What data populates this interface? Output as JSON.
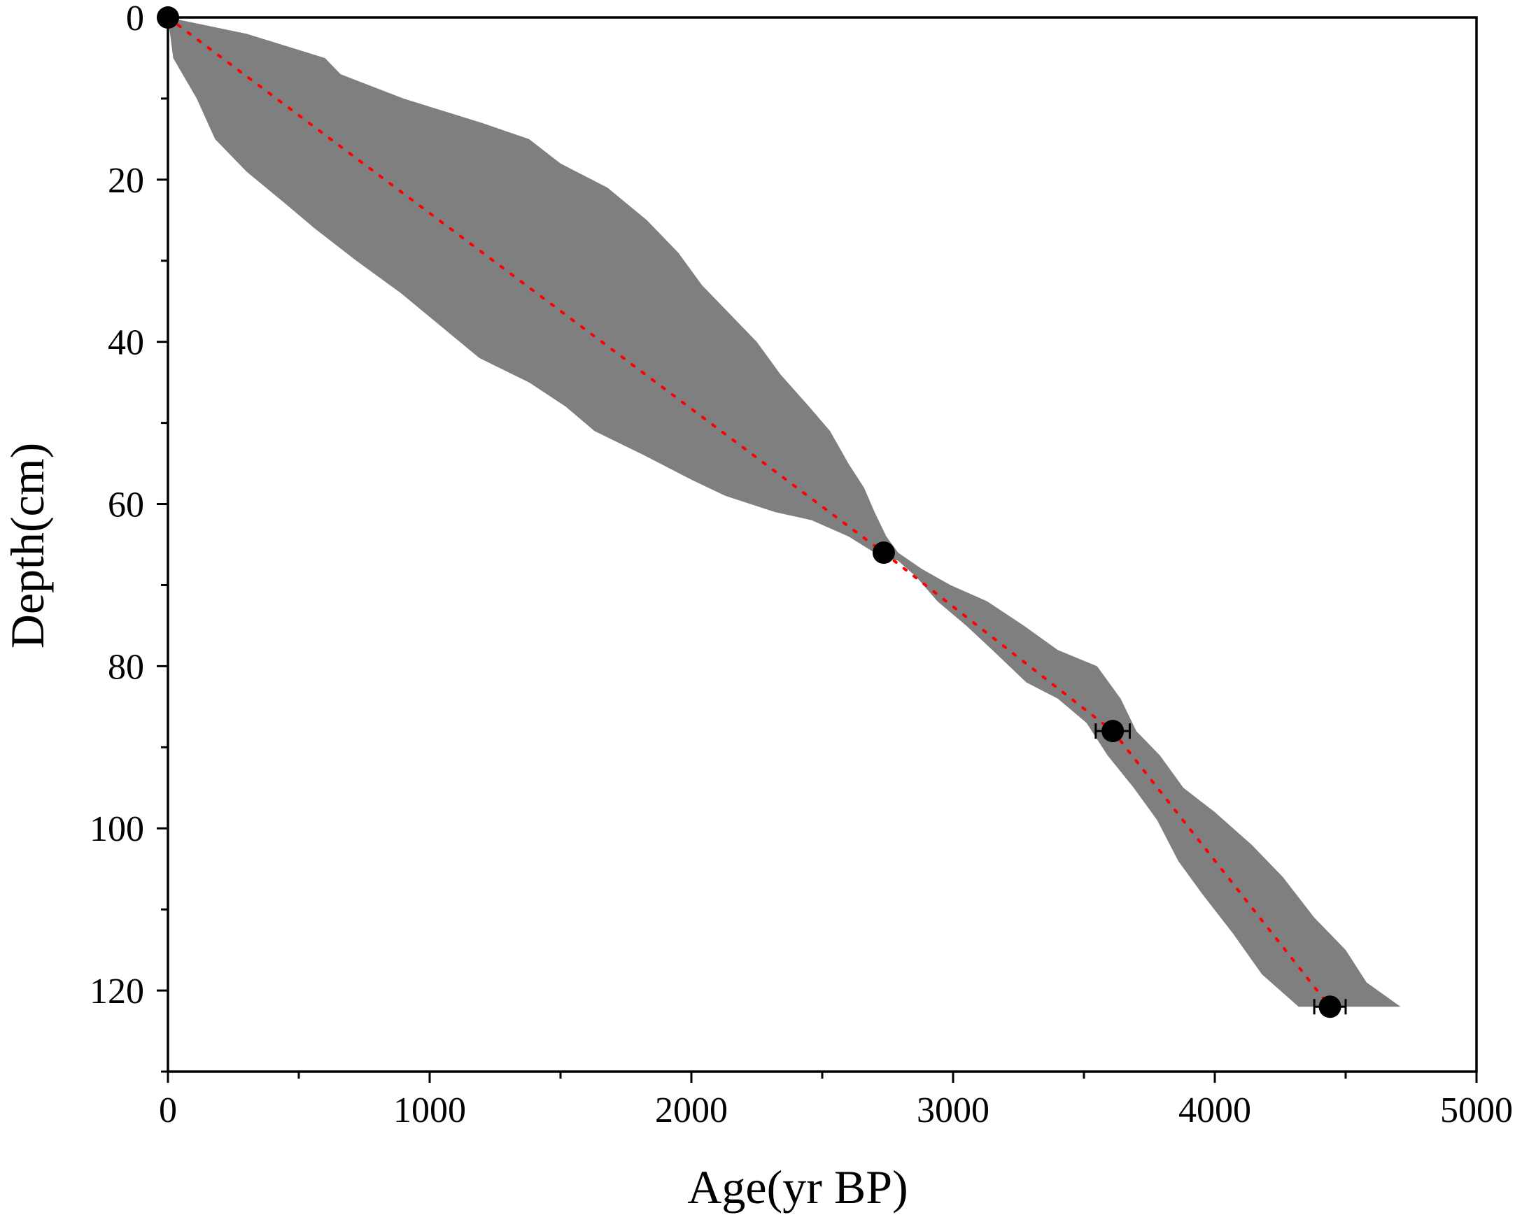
{
  "chart_data": {
    "type": "scatter",
    "xlabel": "Age(yr BP)",
    "ylabel": "Depth(cm)",
    "xlim": [
      0,
      5000
    ],
    "ylim": [
      0,
      130
    ],
    "y_inverted": true,
    "x_ticks": [
      0,
      1000,
      2000,
      3000,
      4000,
      5000
    ],
    "y_ticks": [
      0,
      20,
      40,
      60,
      80,
      100,
      120
    ],
    "grid": false,
    "colors": {
      "band": "#7f7f7f",
      "median_line": "#ff0000",
      "points": "#000000",
      "axes": "#000000"
    },
    "dated_points": [
      {
        "age": 0,
        "depth": 0,
        "age_error": 0
      },
      {
        "age": 2735,
        "depth": 66,
        "age_error": 20
      },
      {
        "age": 3610,
        "depth": 88,
        "age_error": 65
      },
      {
        "age": 4440,
        "depth": 122,
        "age_error": 60
      }
    ],
    "median_model": [
      [
        0,
        0
      ],
      [
        2735,
        66
      ],
      [
        3610,
        88
      ],
      [
        4440,
        122
      ]
    ],
    "uncertainty_band": {
      "upper_edge": [
        [
          0,
          0
        ],
        [
          300,
          2
        ],
        [
          600,
          5
        ],
        [
          660,
          7
        ],
        [
          900,
          10
        ],
        [
          1200,
          13
        ],
        [
          1380,
          15
        ],
        [
          1500,
          18
        ],
        [
          1680,
          21
        ],
        [
          1830,
          25
        ],
        [
          1950,
          29
        ],
        [
          2040,
          33
        ],
        [
          2160,
          37
        ],
        [
          2250,
          40
        ],
        [
          2340,
          44
        ],
        [
          2450,
          48
        ],
        [
          2530,
          51
        ],
        [
          2600,
          55
        ],
        [
          2660,
          58
        ],
        [
          2700,
          61
        ],
        [
          2745,
          64
        ],
        [
          2790,
          66
        ],
        [
          2880,
          68
        ],
        [
          2990,
          70
        ],
        [
          3130,
          72
        ],
        [
          3270,
          75
        ],
        [
          3400,
          78
        ],
        [
          3550,
          80
        ],
        [
          3640,
          84
        ],
        [
          3700,
          88
        ],
        [
          3790,
          91
        ],
        [
          3880,
          95
        ],
        [
          4000,
          98
        ],
        [
          4140,
          102
        ],
        [
          4260,
          106
        ],
        [
          4380,
          111
        ],
        [
          4500,
          115
        ],
        [
          4580,
          119
        ],
        [
          4710,
          122
        ]
      ],
      "lower_edge": [
        [
          4320,
          122
        ],
        [
          4180,
          118
        ],
        [
          4070,
          113
        ],
        [
          3950,
          108
        ],
        [
          3860,
          104
        ],
        [
          3780,
          99
        ],
        [
          3690,
          95
        ],
        [
          3590,
          91
        ],
        [
          3510,
          87
        ],
        [
          3400,
          84
        ],
        [
          3280,
          82
        ],
        [
          3150,
          78
        ],
        [
          3050,
          75
        ],
        [
          2940,
          72
        ],
        [
          2860,
          69
        ],
        [
          2790,
          67
        ],
        [
          2700,
          66
        ],
        [
          2600,
          64
        ],
        [
          2460,
          62
        ],
        [
          2320,
          61
        ],
        [
          2130,
          59
        ],
        [
          2000,
          57
        ],
        [
          1820,
          54
        ],
        [
          1630,
          51
        ],
        [
          1520,
          48
        ],
        [
          1380,
          45
        ],
        [
          1190,
          42
        ],
        [
          1040,
          38
        ],
        [
          890,
          34
        ],
        [
          720,
          30
        ],
        [
          560,
          26
        ],
        [
          450,
          23
        ],
        [
          300,
          19
        ],
        [
          180,
          15
        ],
        [
          110,
          10
        ],
        [
          20,
          5
        ],
        [
          0,
          0
        ]
      ]
    }
  }
}
